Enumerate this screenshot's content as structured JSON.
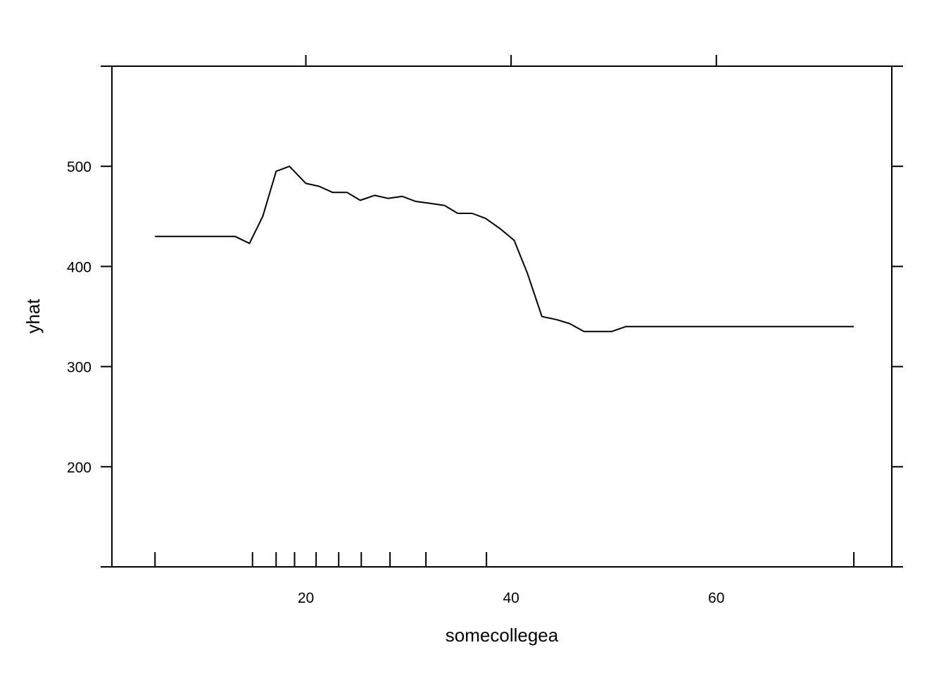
{
  "chart_data": {
    "type": "line",
    "xlabel": "somecollegea",
    "ylabel": "yhat",
    "x_ticks": [
      20,
      40,
      60
    ],
    "y_ticks": [
      200,
      300,
      400,
      500
    ],
    "x_tick_labels": [
      "20",
      "40",
      "60"
    ],
    "y_tick_labels": [
      "200",
      "300",
      "400",
      "500"
    ],
    "xlim": [
      1.1,
      77.1
    ],
    "ylim": [
      100,
      600
    ],
    "series": [
      {
        "x": [
          5.3,
          6.6,
          7.9,
          9.2,
          10.5,
          11.8,
          13.1,
          14.5,
          15.8,
          17.1,
          18.4,
          20.0,
          21.3,
          22.6,
          24.0,
          25.3,
          26.7,
          28.0,
          29.4,
          30.7,
          32.1,
          33.5,
          34.8,
          36.2,
          37.5,
          38.9,
          40.3,
          41.6,
          43.0,
          44.4,
          45.7,
          47.1,
          48.5,
          49.8,
          51.2,
          52.6,
          54.0,
          55.3,
          56.7,
          58.1,
          59.4,
          60.8,
          62.2,
          63.5,
          64.9,
          66.3,
          67.6,
          69.0,
          70.4,
          71.7,
          73.4
        ],
        "y": [
          430,
          430,
          430,
          430,
          430,
          430,
          430,
          423,
          450,
          495,
          500,
          483,
          480,
          474,
          474,
          466,
          471,
          468,
          470,
          465,
          463,
          461,
          453,
          453,
          448,
          438,
          426,
          393,
          350,
          347,
          343,
          335,
          335,
          335,
          340,
          340,
          340,
          340,
          340,
          340,
          340,
          340,
          340,
          340,
          340,
          340,
          340,
          340,
          340,
          340,
          340
        ]
      }
    ],
    "rug_x": [
      5.3,
      14.8,
      17.1,
      18.9,
      21.0,
      23.2,
      25.4,
      28.2,
      31.7,
      37.6,
      73.4
    ],
    "grid": false,
    "legend": "none"
  }
}
